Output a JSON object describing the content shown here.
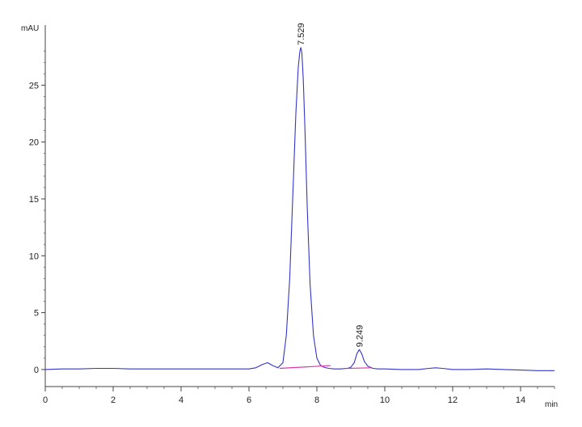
{
  "chart_data": {
    "type": "line",
    "title": "",
    "xlabel": "min",
    "ylabel": "mAU",
    "xlim": [
      0,
      15
    ],
    "ylim": [
      -1.5,
      30
    ],
    "x_ticks": [
      0,
      2,
      4,
      6,
      8,
      10,
      12,
      14
    ],
    "x_tick_labels": [
      "0",
      "2",
      "4",
      "6",
      "8",
      "10",
      "12",
      "14"
    ],
    "y_ticks": [
      0,
      5,
      10,
      15,
      20,
      25
    ],
    "y_tick_labels": [
      "0",
      "5",
      "10",
      "15",
      "20",
      "25"
    ],
    "grid": false,
    "series": [
      {
        "color": "#3535c8",
        "x": [
          0,
          0.5,
          1.0,
          1.5,
          2.0,
          2.5,
          3.0,
          3.5,
          4.0,
          4.5,
          5.0,
          5.5,
          6.0,
          6.2,
          6.4,
          6.55,
          6.7,
          6.85,
          7.0,
          7.1,
          7.2,
          7.3,
          7.38,
          7.45,
          7.5,
          7.529,
          7.56,
          7.6,
          7.65,
          7.72,
          7.8,
          7.9,
          8.0,
          8.1,
          8.2,
          8.35,
          8.5,
          8.7,
          8.9,
          9.0,
          9.1,
          9.18,
          9.249,
          9.32,
          9.4,
          9.5,
          9.65,
          9.8,
          10.0,
          10.5,
          11.0,
          11.3,
          11.5,
          11.7,
          12.0,
          12.5,
          13.0,
          13.5,
          14.0,
          14.5,
          15.0
        ],
        "y": [
          0.0,
          0.05,
          0.05,
          0.1,
          0.1,
          0.05,
          0.05,
          0.05,
          0.05,
          0.05,
          0.05,
          0.05,
          0.05,
          0.15,
          0.45,
          0.6,
          0.35,
          0.15,
          0.6,
          3.0,
          8.0,
          16.0,
          22.5,
          26.5,
          28.0,
          28.3,
          27.8,
          25.5,
          21.0,
          14.0,
          7.5,
          3.0,
          1.0,
          0.4,
          0.2,
          0.1,
          0.05,
          0.05,
          0.1,
          0.2,
          0.6,
          1.4,
          1.75,
          1.4,
          0.7,
          0.3,
          0.1,
          0.05,
          0.05,
          0.0,
          0.0,
          0.1,
          0.15,
          0.1,
          0.0,
          0.0,
          0.05,
          0.0,
          -0.05,
          -0.1,
          -0.1
        ]
      },
      {
        "color": "#d63aa8",
        "x": [
          6.9,
          7.5,
          8.1,
          8.4
        ],
        "y": [
          0.1,
          0.2,
          0.3,
          0.35
        ]
      },
      {
        "color": "#d63aa8",
        "x": [
          8.9,
          9.2,
          9.6
        ],
        "y": [
          0.1,
          0.12,
          0.15
        ]
      }
    ],
    "peaks": [
      {
        "x": 7.529,
        "y": 28.3,
        "label": "7.529"
      },
      {
        "x": 9.249,
        "y": 1.75,
        "label": "9.249"
      }
    ]
  }
}
